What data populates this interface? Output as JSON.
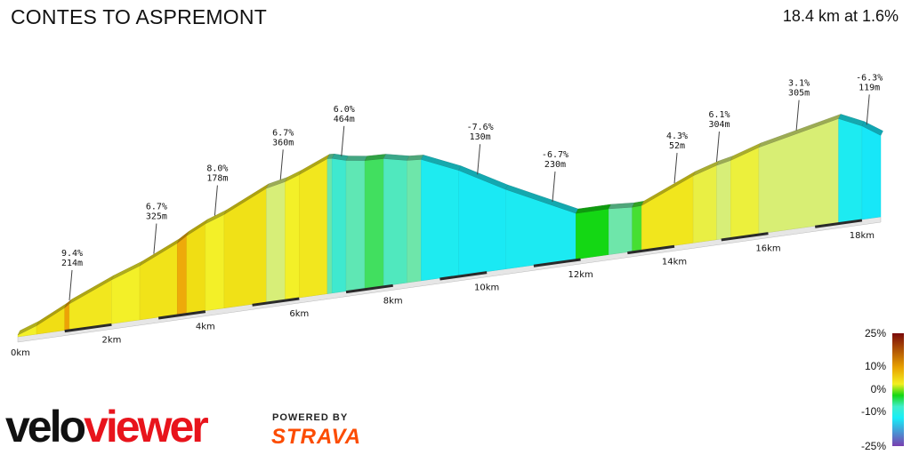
{
  "header": {
    "title": "CONTES TO ASPREMONT",
    "summary": "18.4 km at 1.6%"
  },
  "chart_data": {
    "type": "area",
    "xlabel": "",
    "ylabel": "",
    "xlim": [
      0,
      18.4
    ],
    "x_ticks": [
      "0km",
      "2km",
      "4km",
      "6km",
      "8km",
      "10km",
      "12km",
      "14km",
      "16km",
      "18km"
    ],
    "segments": [
      {
        "from": 0.0,
        "to": 0.4,
        "grade": 5
      },
      {
        "from": 0.4,
        "to": 1.0,
        "grade": 7
      },
      {
        "from": 1.0,
        "to": 1.1,
        "grade": 9.4
      },
      {
        "from": 1.1,
        "to": 2.0,
        "grade": 6
      },
      {
        "from": 2.0,
        "to": 2.6,
        "grade": 5
      },
      {
        "from": 2.6,
        "to": 3.4,
        "grade": 6.5
      },
      {
        "from": 3.4,
        "to": 3.6,
        "grade": 9
      },
      {
        "from": 3.6,
        "to": 4.0,
        "grade": 7
      },
      {
        "from": 4.0,
        "to": 4.4,
        "grade": 5
      },
      {
        "from": 4.4,
        "to": 5.3,
        "grade": 6.7
      },
      {
        "from": 5.3,
        "to": 5.7,
        "grade": 3
      },
      {
        "from": 5.7,
        "to": 6.0,
        "grade": 5
      },
      {
        "from": 6.0,
        "to": 6.6,
        "grade": 6
      },
      {
        "from": 6.6,
        "to": 6.7,
        "grade": -1
      },
      {
        "from": 6.7,
        "to": 7.0,
        "grade": -4
      },
      {
        "from": 7.0,
        "to": 7.4,
        "grade": -2
      },
      {
        "from": 7.4,
        "to": 7.8,
        "grade": -0.5
      },
      {
        "from": 7.8,
        "to": 8.3,
        "grade": -3
      },
      {
        "from": 8.3,
        "to": 8.6,
        "grade": -1
      },
      {
        "from": 8.6,
        "to": 9.4,
        "grade": -6
      },
      {
        "from": 9.4,
        "to": 10.4,
        "grade": -7.6
      },
      {
        "from": 10.4,
        "to": 11.9,
        "grade": -6.7
      },
      {
        "from": 11.9,
        "to": 12.6,
        "grade": 0
      },
      {
        "from": 12.6,
        "to": 13.1,
        "grade": -1
      },
      {
        "from": 13.1,
        "to": 13.3,
        "grade": 0.5
      },
      {
        "from": 13.3,
        "to": 14.4,
        "grade": 6.1
      },
      {
        "from": 14.4,
        "to": 14.9,
        "grade": 4.3
      },
      {
        "from": 14.9,
        "to": 15.2,
        "grade": 3
      },
      {
        "from": 15.2,
        "to": 15.8,
        "grade": 4.5
      },
      {
        "from": 15.8,
        "to": 17.5,
        "grade": 3.1
      },
      {
        "from": 17.5,
        "to": 18.0,
        "grade": -6.3
      },
      {
        "from": 18.0,
        "to": 18.4,
        "grade": -9
      }
    ],
    "annotations": [
      {
        "x": 1.1,
        "grade": "9.4%",
        "length": "214m"
      },
      {
        "x": 2.9,
        "grade": "6.7%",
        "length": "325m"
      },
      {
        "x": 4.2,
        "grade": "8.0%",
        "length": "178m"
      },
      {
        "x": 5.6,
        "grade": "6.7%",
        "length": "360m"
      },
      {
        "x": 6.9,
        "grade": "6.0%",
        "length": "464m"
      },
      {
        "x": 9.8,
        "grade": "-7.6%",
        "length": "130m"
      },
      {
        "x": 11.4,
        "grade": "-6.7%",
        "length": "230m"
      },
      {
        "x": 14.0,
        "grade": "4.3%",
        "length": "52m"
      },
      {
        "x": 14.9,
        "grade": "6.1%",
        "length": "304m"
      },
      {
        "x": 16.6,
        "grade": "3.1%",
        "length": "305m"
      },
      {
        "x": 18.1,
        "grade": "-6.3%",
        "length": "119m"
      }
    ],
    "legend": {
      "placement": "bottom-right",
      "ticks": [
        "25%",
        "10%",
        "0%",
        "-10%",
        "-25%"
      ],
      "tick_values": [
        25,
        10,
        0,
        -10,
        -25
      ]
    },
    "colors": {
      "steep_up": "#e8a000",
      "moderate_up": "#f3ef20",
      "gentle_up": "#d9ee80",
      "flat": "#14d814",
      "down": "#40eecc",
      "steep_down": "#18eef8",
      "legend_top": "#7a0a0a",
      "legend_bottom": "#7a3fb0"
    },
    "grid": false
  },
  "brand": {
    "logo_part1": "velo",
    "logo_part2": "viewer",
    "powered_by": "POWERED BY",
    "strava": "STRAVA"
  }
}
